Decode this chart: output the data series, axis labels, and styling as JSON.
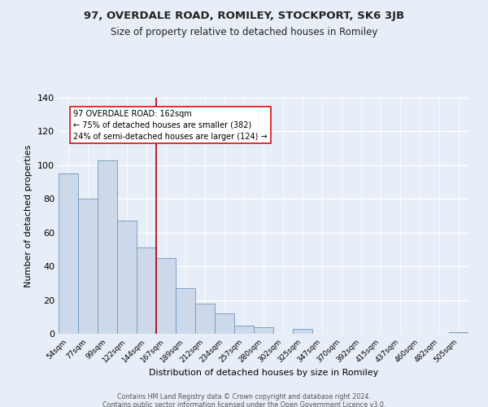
{
  "title": "97, OVERDALE ROAD, ROMILEY, STOCKPORT, SK6 3JB",
  "subtitle": "Size of property relative to detached houses in Romiley",
  "xlabel": "Distribution of detached houses by size in Romiley",
  "ylabel": "Number of detached properties",
  "bar_labels": [
    "54sqm",
    "77sqm",
    "99sqm",
    "122sqm",
    "144sqm",
    "167sqm",
    "189sqm",
    "212sqm",
    "234sqm",
    "257sqm",
    "280sqm",
    "302sqm",
    "325sqm",
    "347sqm",
    "370sqm",
    "392sqm",
    "415sqm",
    "437sqm",
    "460sqm",
    "482sqm",
    "505sqm"
  ],
  "bar_heights": [
    95,
    80,
    103,
    67,
    51,
    45,
    27,
    18,
    12,
    5,
    4,
    0,
    3,
    0,
    0,
    0,
    0,
    0,
    0,
    0,
    1
  ],
  "bar_color": "#cdd9ea",
  "bar_edge_color": "#7096c0",
  "vline_color": "#aa0000",
  "vline_x_idx": 5,
  "annotation_title": "97 OVERDALE ROAD: 162sqm",
  "annotation_line1": "← 75% of detached houses are smaller (382)",
  "annotation_line2": "24% of semi-detached houses are larger (124) →",
  "annotation_box_color": "#ffffff",
  "annotation_box_edge": "#cc0000",
  "ylim": [
    0,
    140
  ],
  "bg_color": "#e8eef7",
  "plot_bg_color": "#e8eef7",
  "footer1": "Contains HM Land Registry data © Crown copyright and database right 2024.",
  "footer2": "Contains public sector information licensed under the Open Government Licence v3.0."
}
